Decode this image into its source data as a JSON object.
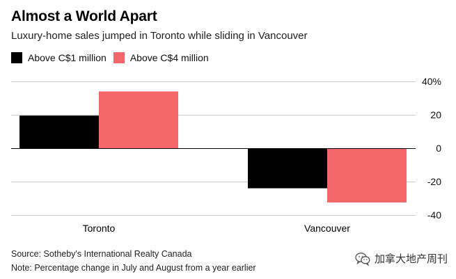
{
  "header": {
    "title": "Almost a World Apart",
    "subtitle": "Luxury-home sales jumped in Toronto while sliding in Vancouver"
  },
  "legend": [
    {
      "label": "Above C$1 million",
      "color": "#000000"
    },
    {
      "label": "Above C$4 million",
      "color": "#f4686b"
    }
  ],
  "chart_data": {
    "type": "bar",
    "title": "Almost a World Apart",
    "subtitle": "Luxury-home sales jumped in Toronto while sliding in Vancouver",
    "xlabel": "",
    "ylabel": "",
    "categories": [
      "Toronto",
      "Vancouver"
    ],
    "series": [
      {
        "name": "Above C$1 million",
        "color": "#000000",
        "values": [
          19.5,
          -24
        ]
      },
      {
        "name": "Above C$4 million",
        "color": "#f4686b",
        "values": [
          34,
          -32.5
        ]
      }
    ],
    "ylim": [
      -40,
      40
    ],
    "yticks": [
      40,
      20,
      0,
      -20,
      -40
    ],
    "ytick_labels": [
      "40%",
      "20",
      "0",
      "-20",
      "-40"
    ],
    "y_axis_side": "right",
    "grid": true,
    "legend_position": "top-left"
  },
  "footer": {
    "source": "Source: Sotheby's International Realty Canada",
    "note": "Note: Percentage change in July and August from a year earlier"
  },
  "watermark": {
    "text": "加拿大地产周刊",
    "icon": "wechat-icon"
  }
}
